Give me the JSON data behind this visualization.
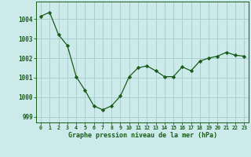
{
  "x": [
    0,
    1,
    2,
    3,
    4,
    5,
    6,
    7,
    8,
    9,
    10,
    11,
    12,
    13,
    14,
    15,
    16,
    17,
    18,
    19,
    20,
    21,
    22,
    23
  ],
  "y": [
    1004.15,
    1004.35,
    1003.2,
    1002.65,
    1001.05,
    1000.35,
    999.55,
    999.35,
    999.55,
    1000.05,
    1001.05,
    1001.5,
    1001.6,
    1001.35,
    1001.05,
    1001.05,
    1001.55,
    1001.35,
    1001.85,
    1002.0,
    1002.1,
    1002.3,
    1002.15,
    1002.1
  ],
  "line_color": "#1a5c1a",
  "marker": "D",
  "marker_size": 2.2,
  "bg_color": "#cceaea",
  "grid_color": "#aacfcf",
  "xlabel": "Graphe pression niveau de la mer (hPa)",
  "xlabel_color": "#1a5c1a",
  "tick_color": "#1a5c1a",
  "ylim": [
    998.7,
    1004.9
  ],
  "xlim": [
    -0.5,
    23.5
  ],
  "yticks": [
    999,
    1000,
    1001,
    1002,
    1003,
    1004
  ],
  "xticks": [
    0,
    1,
    2,
    3,
    4,
    5,
    6,
    7,
    8,
    9,
    10,
    11,
    12,
    13,
    14,
    15,
    16,
    17,
    18,
    19,
    20,
    21,
    22,
    23
  ],
  "xtick_labels": [
    "0",
    "1",
    "2",
    "3",
    "4",
    "5",
    "6",
    "7",
    "8",
    "9",
    "10",
    "11",
    "12",
    "13",
    "14",
    "15",
    "16",
    "17",
    "18",
    "19",
    "20",
    "21",
    "22",
    "23"
  ]
}
